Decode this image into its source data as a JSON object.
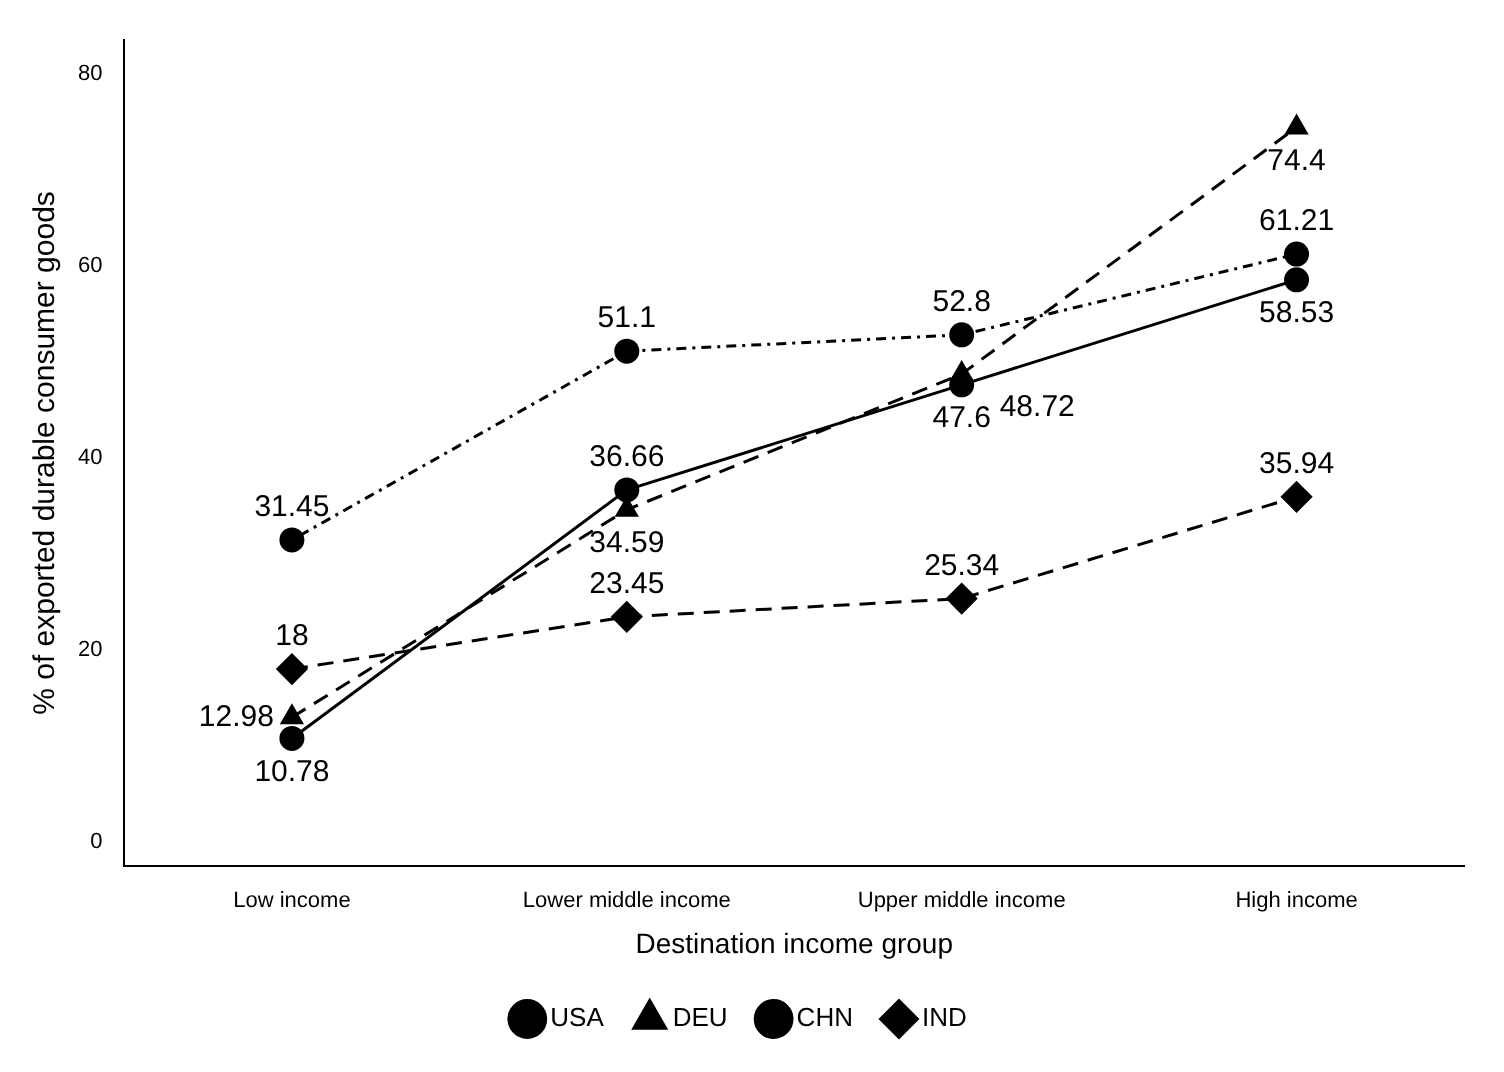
{
  "chart_data": {
    "type": "line",
    "xlabel": "Destination income group",
    "ylabel": "% of exported durable consumer goods",
    "categories": [
      "Low income",
      "Lower middle income",
      "Upper middle income",
      "High income"
    ],
    "series": [
      {
        "name": "USA",
        "color": "#000000",
        "marker": "circle",
        "line_style": "solid",
        "values": [
          10.78,
          36.66,
          47.6,
          58.53
        ]
      },
      {
        "name": "DEU",
        "color": "#000000",
        "marker": "triangle",
        "line_style": "dashed",
        "values": [
          12.98,
          34.59,
          48.72,
          74.4
        ]
      },
      {
        "name": "CHN",
        "color": "#000000",
        "marker": "circle",
        "line_style": "dotted",
        "values": [
          31.45,
          51.1,
          52.8,
          61.21
        ]
      },
      {
        "name": "IND",
        "color": "#000000",
        "marker": "diamond",
        "line_style": "dashed",
        "values": [
          18,
          23.45,
          25.34,
          35.94
        ]
      }
    ],
    "ylim": [
      -2.5,
      83.5
    ],
    "yticks": [
      0,
      20,
      40,
      60,
      80
    ],
    "grid": false,
    "legend": "bottom",
    "data_labels": true
  }
}
